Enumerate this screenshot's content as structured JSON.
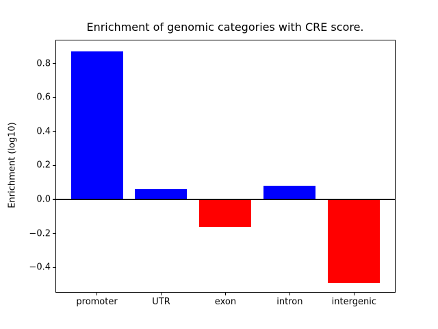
{
  "figure": {
    "background_color": "#ffffff",
    "text_color": "#000000",
    "axis_color": "#000000"
  },
  "chart_data": {
    "type": "bar",
    "title": "Enrichment of genomic categories with CRE score.",
    "xlabel": "",
    "ylabel": "Enrichment (log10)",
    "categories": [
      "promoter",
      "UTR",
      "exon",
      "intron",
      "intergenic"
    ],
    "values": [
      0.87,
      0.06,
      -0.16,
      0.08,
      -0.49
    ],
    "bar_colors": [
      "#0000ff",
      "#0000ff",
      "#ff0000",
      "#0000ff",
      "#ff0000"
    ],
    "positive_color": "#0000ff",
    "negative_color": "#ff0000",
    "yticks": [
      0.8,
      0.6,
      0.4,
      0.2,
      0.0,
      -0.2,
      -0.4
    ],
    "ytick_labels": [
      "0.8",
      "0.6",
      "0.4",
      "0.2",
      "0.0",
      "−0.2",
      "−0.4"
    ],
    "ylim": [
      -0.55,
      0.94
    ],
    "grid": false,
    "legend": null,
    "zero_line": true
  }
}
